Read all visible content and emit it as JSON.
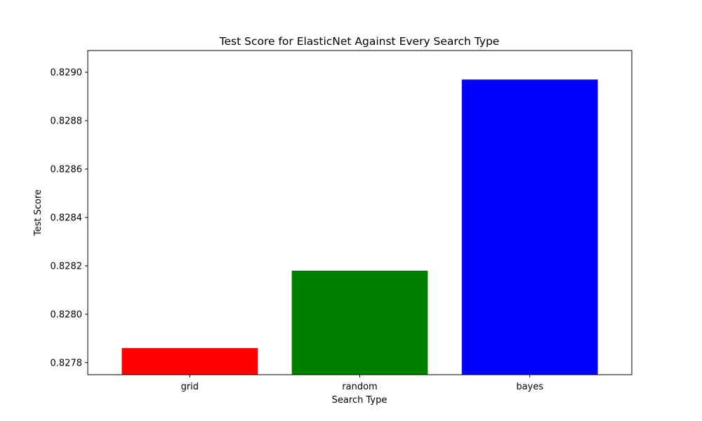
{
  "chart_data": {
    "type": "bar",
    "title": "Test Score for ElasticNet Against Every Search Type",
    "xlabel": "Search Type",
    "ylabel": "Test Score",
    "categories": [
      "grid",
      "random",
      "bayes"
    ],
    "values": [
      0.82786,
      0.82818,
      0.82897
    ],
    "colors": [
      "#ff0000",
      "#008000",
      "#0000ff"
    ],
    "ylim": [
      0.82775,
      0.82909
    ],
    "yticks": [
      0.8278,
      0.828,
      0.8282,
      0.8284,
      0.8286,
      0.8288,
      0.829
    ],
    "ytick_labels": [
      "0.8278",
      "0.8280",
      "0.8282",
      "0.8284",
      "0.8286",
      "0.8288",
      "0.8290"
    ],
    "grid": false,
    "legend": "none"
  }
}
